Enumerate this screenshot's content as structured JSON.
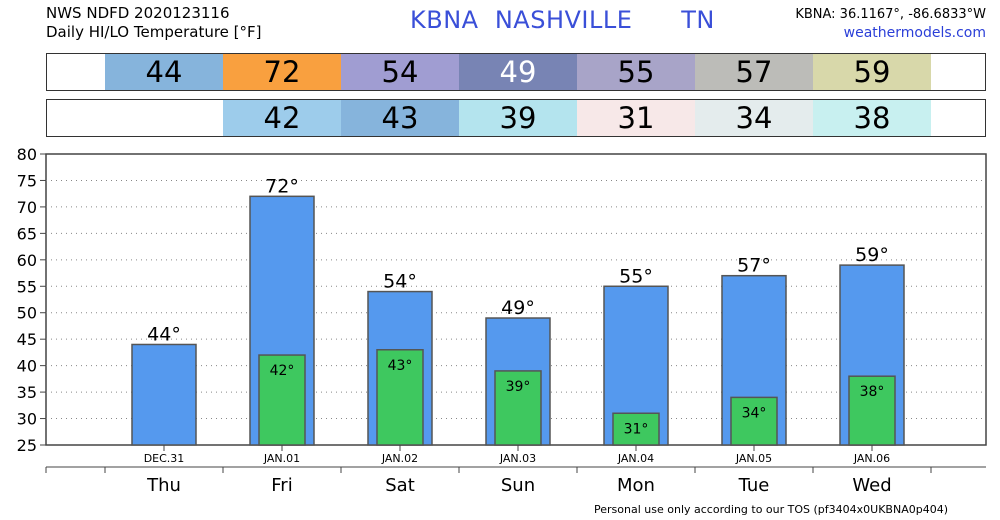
{
  "header": {
    "line1": "NWS NDFD 2020123116",
    "line2": "Daily HI/LO Temperature [°F]",
    "station": "KBNA",
    "city": "NASHVILLE",
    "state": "TN",
    "coords": "KBNA: 36.1167°, -86.6833°W",
    "site": "weathermodels.com"
  },
  "footer": "Personal use only according to our TOS (pf3404x0UKBNA0p404)",
  "degree_suffix": "°",
  "hi_strip": {
    "values": [
      "44",
      "72",
      "54",
      "49",
      "55",
      "57",
      "59"
    ],
    "colors": [
      "#86b4dc",
      "#f9a03f",
      "#a09dd2",
      "#7884b4",
      "#a8a4c8",
      "#bcbcb8",
      "#d8d8aa"
    ]
  },
  "lo_strip": {
    "values": [
      "42",
      "43",
      "39",
      "31",
      "34",
      "38"
    ],
    "colors": [
      "#9dcceb",
      "#86b4dc",
      "#b4e4ee",
      "#f7e8e8",
      "#e4eced",
      "#c8f0f0"
    ]
  },
  "chart_data": {
    "type": "bar",
    "categories": [
      "DEC.31",
      "JAN.01",
      "JAN.02",
      "JAN.03",
      "JAN.04",
      "JAN.05",
      "JAN.06"
    ],
    "days": [
      "Thu",
      "Fri",
      "Sat",
      "Sun",
      "Mon",
      "Tue",
      "Wed"
    ],
    "series": [
      {
        "values": [
          44,
          72,
          54,
          49,
          55,
          57,
          59
        ],
        "color": "#5599ee"
      },
      {
        "values": [
          null,
          42,
          43,
          39,
          31,
          34,
          38
        ],
        "color": "#3ec85f"
      }
    ],
    "ylim": [
      25,
      80
    ],
    "yticks": [
      25,
      30,
      35,
      40,
      45,
      50,
      55,
      60,
      65,
      70,
      75,
      80
    ],
    "grid": true
  }
}
